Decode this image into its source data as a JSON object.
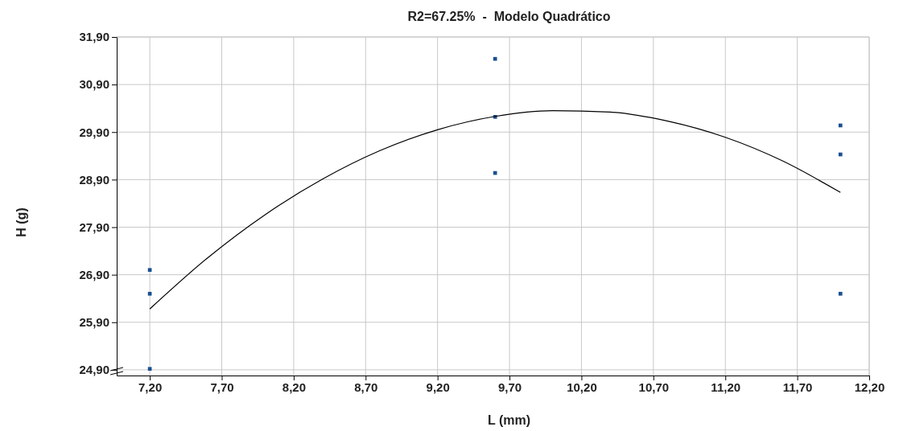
{
  "chart_data": {
    "type": "scatter",
    "title": "R2=67.25%  -  Modelo Quadrático",
    "xlabel": "L (mm)",
    "ylabel": "H (g)",
    "xlim": [
      6.97,
      12.2
    ],
    "ylim": [
      24.78,
      31.9
    ],
    "xticks": [
      {
        "value": 7.2,
        "label": "7,20"
      },
      {
        "value": 7.7,
        "label": "7,70"
      },
      {
        "value": 8.2,
        "label": "8,20"
      },
      {
        "value": 8.7,
        "label": "8,70"
      },
      {
        "value": 9.2,
        "label": "9,20"
      },
      {
        "value": 9.7,
        "label": "9,70"
      },
      {
        "value": 10.2,
        "label": "10,20"
      },
      {
        "value": 10.7,
        "label": "10,70"
      },
      {
        "value": 11.2,
        "label": "11,20"
      },
      {
        "value": 11.7,
        "label": "11,70"
      },
      {
        "value": 12.2,
        "label": "12,20"
      }
    ],
    "yticks": [
      {
        "value": 24.9,
        "label": "24,90"
      },
      {
        "value": 25.9,
        "label": "25,90"
      },
      {
        "value": 26.9,
        "label": "26,90"
      },
      {
        "value": 27.9,
        "label": "27,90"
      },
      {
        "value": 28.9,
        "label": "28,90"
      },
      {
        "value": 29.9,
        "label": "29,90"
      },
      {
        "value": 30.9,
        "label": "30,90"
      },
      {
        "value": 31.9,
        "label": "31,90"
      }
    ],
    "grid": true,
    "marker": "square",
    "series": [
      {
        "color": "#1a4f8f",
        "x": [
          7.2,
          7.2,
          7.2,
          9.6,
          9.6,
          9.6,
          12.0,
          12.0,
          12.0
        ],
        "values": [
          27.0,
          26.5,
          24.92,
          31.44,
          30.22,
          29.04,
          30.04,
          29.43,
          26.5
        ]
      },
      {
        "type": "line",
        "color": "#000000",
        "marker": "none",
        "line_style": "solid",
        "x": [
          7.2,
          7.6,
          8.0,
          8.4,
          8.8,
          9.2,
          9.6,
          10.0,
          10.4,
          10.8,
          11.2,
          11.6,
          12.0
        ],
        "values": [
          26.18,
          27.25,
          28.16,
          28.91,
          29.51,
          29.95,
          30.23,
          30.35,
          30.32,
          30.13,
          29.79,
          29.29,
          28.63
        ]
      }
    ]
  }
}
